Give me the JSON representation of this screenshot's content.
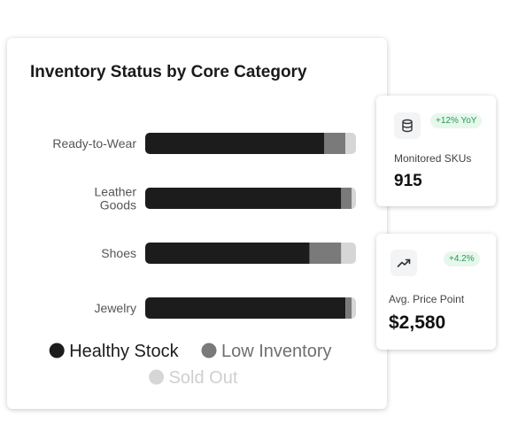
{
  "chart_data": {
    "type": "bar",
    "orientation": "horizontal",
    "stacked": true,
    "title": "Inventory Status by Core Category",
    "categories": [
      "Ready-to-Wear",
      "Leather Goods",
      "Shoes",
      "Jewelry"
    ],
    "category_lines": [
      [
        "Ready-to-Wear"
      ],
      [
        "Leather",
        "Goods"
      ],
      [
        "Shoes"
      ],
      [
        "Jewelry"
      ]
    ],
    "series": [
      {
        "name": "Healthy Stock",
        "color": "#1c1c1c",
        "values": [
          85,
          93,
          78,
          95
        ]
      },
      {
        "name": "Low Inventory",
        "color": "#7a7a7a",
        "values": [
          10,
          5,
          15,
          3
        ]
      },
      {
        "name": "Sold Out",
        "color": "#d6d6d6",
        "values": [
          5,
          2,
          7,
          2
        ]
      }
    ],
    "xlim": [
      0,
      100
    ],
    "grid": false,
    "legend_placement": "bottom"
  },
  "stats": [
    {
      "icon": "database-icon",
      "badge": "+12% YoY",
      "label": "Monitored SKUs",
      "value": "915"
    },
    {
      "icon": "trending-up-icon",
      "badge": "+4.2%",
      "label": "Avg. Price Point",
      "value": "$2,580"
    }
  ]
}
